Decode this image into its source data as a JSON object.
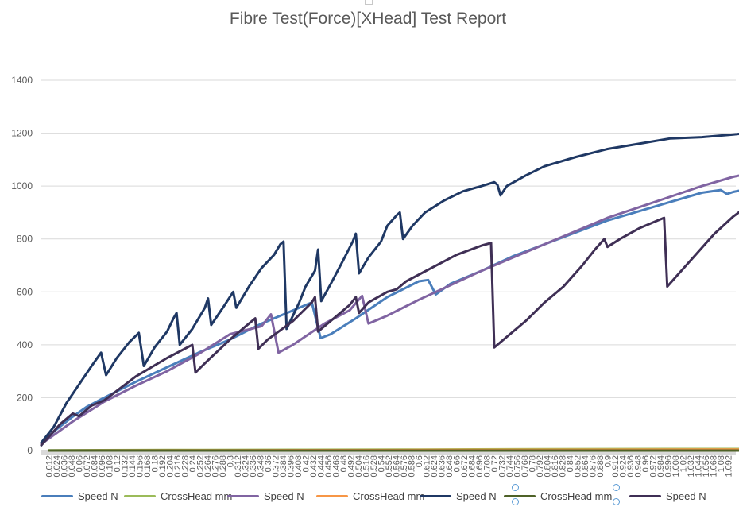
{
  "chart_data": {
    "type": "line",
    "title": "Fibre Test(Force)[XHead] Test Report",
    "xlabel": "",
    "ylabel": "",
    "ylim": [
      0,
      1400
    ],
    "yticks": [
      0,
      200,
      400,
      600,
      800,
      1000,
      1200,
      1400
    ],
    "grid": true,
    "legend_position": "bottom",
    "x_step": 0.012,
    "x_count": 92,
    "x_tick_labels": [
      "0.012",
      "0.024",
      "0.036",
      "0.048",
      "0.06",
      "0.072",
      "0.084",
      "0.096",
      "0.108",
      "0.12",
      "0.132",
      "0.144",
      "0.156",
      "0.168",
      "0.18",
      "0.192",
      "0.204",
      "0.216",
      "0.228",
      "0.24",
      "0.252",
      "0.264",
      "0.276",
      "0.288",
      "0.3",
      "0.312",
      "0.324",
      "0.336",
      "0.348",
      "0.36",
      "0.372",
      "0.384",
      "0.396",
      "0.408",
      "0.42",
      "0.432",
      "0.444",
      "0.456",
      "0.468",
      "0.48",
      "0.492",
      "0.504",
      "0.516",
      "0.528",
      "0.54",
      "0.552",
      "0.564",
      "0.576",
      "0.588",
      "0.6",
      "0.612",
      "0.624",
      "0.636",
      "0.648",
      "0.66",
      "0.672",
      "0.684",
      "0.696",
      "0.708",
      "0.72",
      "0.732",
      "0.744",
      "0.756",
      "0.768",
      "0.78",
      "0.792",
      "0.804",
      "0.816",
      "0.828",
      "0.84",
      "0.852",
      "0.864",
      "0.876",
      "0.888",
      "0.9",
      "0.912",
      "0.924",
      "0.936",
      "0.948",
      "0.96",
      "0.972",
      "0.984",
      "0.996",
      "1.008",
      "1.02",
      "1.032",
      "1.044",
      "1.056",
      "1.068",
      "1.08",
      "1.092"
    ],
    "series": [
      {
        "name": "Speed N",
        "color": "#4a7ebb",
        "points": [
          [
            0.0,
            20
          ],
          [
            0.012,
            55
          ],
          [
            0.024,
            80
          ],
          [
            0.048,
            125
          ],
          [
            0.072,
            165
          ],
          [
            0.1,
            200
          ],
          [
            0.15,
            260
          ],
          [
            0.2,
            315
          ],
          [
            0.25,
            370
          ],
          [
            0.3,
            420
          ],
          [
            0.35,
            480
          ],
          [
            0.4,
            530
          ],
          [
            0.43,
            560
          ],
          [
            0.444,
            425
          ],
          [
            0.46,
            440
          ],
          [
            0.5,
            500
          ],
          [
            0.55,
            580
          ],
          [
            0.6,
            640
          ],
          [
            0.615,
            645
          ],
          [
            0.627,
            590
          ],
          [
            0.65,
            630
          ],
          [
            0.7,
            680
          ],
          [
            0.75,
            735
          ],
          [
            0.8,
            780
          ],
          [
            0.85,
            825
          ],
          [
            0.9,
            870
          ],
          [
            0.95,
            905
          ],
          [
            1.0,
            940
          ],
          [
            1.05,
            975
          ],
          [
            1.08,
            985
          ],
          [
            1.09,
            970
          ],
          [
            1.1,
            978
          ],
          [
            1.15,
            1003
          ]
        ]
      },
      {
        "name": "CrossHead mm",
        "color": "#9bbb59",
        "points": [
          [
            0.012,
            1
          ],
          [
            0.2,
            2
          ],
          [
            0.4,
            3
          ],
          [
            0.6,
            4
          ],
          [
            0.8,
            5
          ],
          [
            1.0,
            6
          ],
          [
            1.15,
            6
          ]
        ]
      },
      {
        "name": "Speed N",
        "color": "#8064a2",
        "points": [
          [
            0.0,
            25
          ],
          [
            0.05,
            110
          ],
          [
            0.1,
            185
          ],
          [
            0.15,
            245
          ],
          [
            0.2,
            300
          ],
          [
            0.25,
            365
          ],
          [
            0.3,
            440
          ],
          [
            0.35,
            470
          ],
          [
            0.365,
            515
          ],
          [
            0.377,
            370
          ],
          [
            0.4,
            400
          ],
          [
            0.45,
            480
          ],
          [
            0.49,
            530
          ],
          [
            0.51,
            585
          ],
          [
            0.52,
            480
          ],
          [
            0.55,
            510
          ],
          [
            0.6,
            570
          ],
          [
            0.65,
            625
          ],
          [
            0.7,
            680
          ],
          [
            0.75,
            730
          ],
          [
            0.8,
            780
          ],
          [
            0.85,
            830
          ],
          [
            0.9,
            880
          ],
          [
            0.95,
            920
          ],
          [
            1.0,
            960
          ],
          [
            1.05,
            1000
          ],
          [
            1.1,
            1035
          ],
          [
            1.14,
            1055
          ]
        ]
      },
      {
        "name": "CrossHead mm",
        "color": "#f79646",
        "points": [
          [
            0.012,
            0
          ],
          [
            0.3,
            1
          ],
          [
            0.6,
            2
          ],
          [
            0.9,
            3
          ],
          [
            1.14,
            4
          ]
        ]
      },
      {
        "name": "Speed N",
        "color": "#1f3864",
        "points": [
          [
            0.0,
            30
          ],
          [
            0.02,
            90
          ],
          [
            0.04,
            180
          ],
          [
            0.06,
            250
          ],
          [
            0.08,
            320
          ],
          [
            0.095,
            370
          ],
          [
            0.103,
            285
          ],
          [
            0.12,
            350
          ],
          [
            0.14,
            410
          ],
          [
            0.155,
            445
          ],
          [
            0.163,
            320
          ],
          [
            0.18,
            390
          ],
          [
            0.2,
            450
          ],
          [
            0.21,
            500
          ],
          [
            0.215,
            520
          ],
          [
            0.22,
            400
          ],
          [
            0.24,
            460
          ],
          [
            0.26,
            540
          ],
          [
            0.265,
            575
          ],
          [
            0.27,
            475
          ],
          [
            0.29,
            545
          ],
          [
            0.305,
            600
          ],
          [
            0.31,
            540
          ],
          [
            0.33,
            620
          ],
          [
            0.35,
            690
          ],
          [
            0.37,
            740
          ],
          [
            0.38,
            780
          ],
          [
            0.385,
            790
          ],
          [
            0.39,
            460
          ],
          [
            0.41,
            560
          ],
          [
            0.42,
            620
          ],
          [
            0.435,
            680
          ],
          [
            0.44,
            760
          ],
          [
            0.445,
            565
          ],
          [
            0.46,
            630
          ],
          [
            0.48,
            720
          ],
          [
            0.495,
            790
          ],
          [
            0.5,
            820
          ],
          [
            0.505,
            670
          ],
          [
            0.52,
            730
          ],
          [
            0.54,
            790
          ],
          [
            0.55,
            850
          ],
          [
            0.565,
            890
          ],
          [
            0.57,
            900
          ],
          [
            0.575,
            800
          ],
          [
            0.59,
            850
          ],
          [
            0.61,
            900
          ],
          [
            0.64,
            945
          ],
          [
            0.67,
            980
          ],
          [
            0.7,
            1000
          ],
          [
            0.72,
            1015
          ],
          [
            0.725,
            1005
          ],
          [
            0.73,
            965
          ],
          [
            0.74,
            1000
          ],
          [
            0.77,
            1040
          ],
          [
            0.8,
            1075
          ],
          [
            0.85,
            1110
          ],
          [
            0.9,
            1140
          ],
          [
            0.95,
            1160
          ],
          [
            1.0,
            1180
          ],
          [
            1.05,
            1185
          ],
          [
            1.1,
            1195
          ],
          [
            1.12,
            1200
          ]
        ]
      },
      {
        "name": "CrossHead mm",
        "color": "#4f6228",
        "points": [
          [
            0.012,
            0
          ],
          [
            0.3,
            0
          ],
          [
            0.6,
            0
          ],
          [
            0.9,
            0
          ],
          [
            1.12,
            0
          ]
        ]
      },
      {
        "name": "Speed N",
        "color": "#3f2f55",
        "points": [
          [
            0.0,
            20
          ],
          [
            0.03,
            100
          ],
          [
            0.05,
            140
          ],
          [
            0.06,
            130
          ],
          [
            0.08,
            170
          ],
          [
            0.1,
            190
          ],
          [
            0.15,
            280
          ],
          [
            0.2,
            350
          ],
          [
            0.24,
            400
          ],
          [
            0.245,
            295
          ],
          [
            0.26,
            330
          ],
          [
            0.3,
            420
          ],
          [
            0.33,
            480
          ],
          [
            0.34,
            500
          ],
          [
            0.345,
            385
          ],
          [
            0.36,
            420
          ],
          [
            0.4,
            490
          ],
          [
            0.43,
            560
          ],
          [
            0.435,
            580
          ],
          [
            0.44,
            450
          ],
          [
            0.46,
            490
          ],
          [
            0.49,
            550
          ],
          [
            0.5,
            580
          ],
          [
            0.505,
            520
          ],
          [
            0.52,
            560
          ],
          [
            0.55,
            600
          ],
          [
            0.565,
            610
          ],
          [
            0.58,
            640
          ],
          [
            0.62,
            690
          ],
          [
            0.66,
            740
          ],
          [
            0.7,
            775
          ],
          [
            0.715,
            785
          ],
          [
            0.72,
            390
          ],
          [
            0.74,
            430
          ],
          [
            0.77,
            490
          ],
          [
            0.8,
            560
          ],
          [
            0.83,
            620
          ],
          [
            0.86,
            700
          ],
          [
            0.88,
            760
          ],
          [
            0.895,
            800
          ],
          [
            0.9,
            770
          ],
          [
            0.92,
            800
          ],
          [
            0.95,
            840
          ],
          [
            0.98,
            870
          ],
          [
            0.99,
            880
          ],
          [
            0.995,
            620
          ],
          [
            1.01,
            660
          ],
          [
            1.04,
            740
          ],
          [
            1.07,
            820
          ],
          [
            1.1,
            885
          ],
          [
            1.12,
            920
          ],
          [
            1.13,
            915
          ],
          [
            1.15,
            950
          ],
          [
            1.2,
            1000
          ],
          [
            1.25,
            1030
          ]
        ]
      }
    ]
  },
  "chart": {
    "title": "Fibre Test(Force)[XHead] Test Report"
  }
}
